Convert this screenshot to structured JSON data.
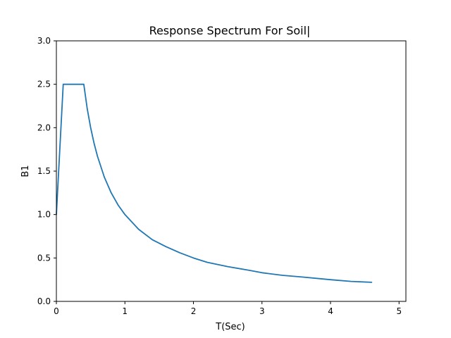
{
  "chart_data": {
    "type": "line",
    "title": "Response Spectrum For Soil|",
    "xlabel": "T(Sec)",
    "ylabel": "B1",
    "xlim": [
      0,
      5.1
    ],
    "ylim": [
      0,
      3.0
    ],
    "grid": false,
    "legend": "none",
    "x_ticks": [
      0,
      1,
      2,
      3,
      4,
      5
    ],
    "x_tick_labels": [
      "0",
      "1",
      "2",
      "3",
      "4",
      "5"
    ],
    "y_ticks": [
      0.0,
      0.5,
      1.0,
      1.5,
      2.0,
      2.5,
      3.0
    ],
    "y_tick_labels": [
      "0.0",
      "0.5",
      "1.0",
      "1.5",
      "2.0",
      "2.5",
      "3.0"
    ],
    "series": [
      {
        "color": "#1f77b4",
        "x": [
          0,
          0.1,
          0.4,
          0.45,
          0.5,
          0.55,
          0.6,
          0.7,
          0.8,
          0.9,
          1.0,
          1.2,
          1.4,
          1.6,
          1.8,
          2.0,
          2.2,
          2.5,
          2.8,
          3.0,
          3.3,
          3.6,
          4.0,
          4.3,
          4.6
        ],
        "y": [
          1.0,
          2.5,
          2.5,
          2.22,
          2.0,
          1.82,
          1.67,
          1.43,
          1.25,
          1.11,
          1.0,
          0.83,
          0.71,
          0.63,
          0.56,
          0.5,
          0.45,
          0.4,
          0.36,
          0.33,
          0.3,
          0.28,
          0.25,
          0.23,
          0.22
        ]
      }
    ]
  }
}
